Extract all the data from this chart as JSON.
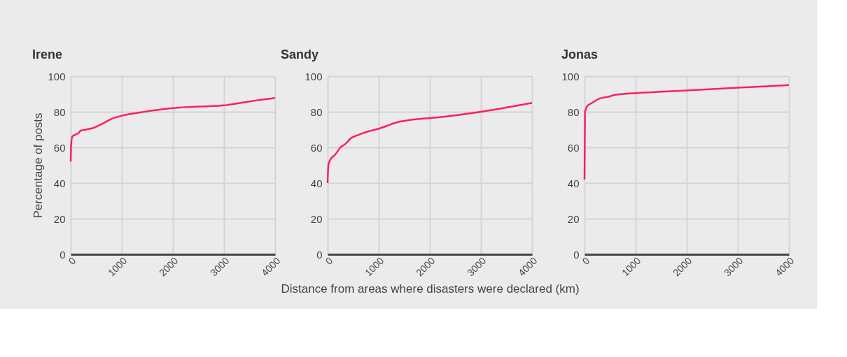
{
  "chart_data": [
    {
      "type": "line",
      "title": "Irene",
      "ylabel": "Percentage of posts",
      "xlim": [
        0,
        4000
      ],
      "ylim": [
        0,
        100
      ],
      "xticks": [
        0,
        1000,
        2000,
        3000,
        4000
      ],
      "yticks": [
        0,
        20,
        40,
        60,
        80,
        100
      ],
      "grid": true,
      "series": [
        {
          "color": "#ff1f5a",
          "x": [
            0,
            10,
            30,
            80,
            150,
            200,
            300,
            450,
            600,
            800,
            1000,
            1400,
            1800,
            2200,
            2600,
            3000,
            3100,
            3500,
            4000
          ],
          "values": [
            52,
            62,
            66,
            67,
            68,
            69.5,
            70,
            71,
            73,
            76,
            77.8,
            79.8,
            81.5,
            82.5,
            83,
            83.6,
            84,
            85.8,
            87.7
          ]
        }
      ]
    },
    {
      "type": "line",
      "title": "Sandy",
      "xlabel": "Distance from areas where disasters were declared (km)",
      "xlim": [
        0,
        4000
      ],
      "ylim": [
        0,
        100
      ],
      "xticks": [
        0,
        1000,
        2000,
        3000,
        4000
      ],
      "yticks": [
        0,
        20,
        40,
        60,
        80,
        100
      ],
      "grid": true,
      "series": [
        {
          "color": "#ff1f5a",
          "x": [
            0,
            15,
            50,
            150,
            250,
            350,
            450,
            600,
            800,
            1000,
            1350,
            1800,
            2200,
            3000,
            4000
          ],
          "values": [
            40,
            50,
            53,
            56,
            60,
            62,
            65,
            67,
            69,
            70.5,
            74,
            76,
            77,
            80,
            85
          ]
        }
      ]
    },
    {
      "type": "line",
      "title": "Jonas",
      "xlim": [
        0,
        4000
      ],
      "ylim": [
        0,
        100
      ],
      "xticks": [
        0,
        1000,
        2000,
        3000,
        4000
      ],
      "yticks": [
        0,
        20,
        40,
        60,
        80,
        100
      ],
      "grid": true,
      "series": [
        {
          "color": "#ff1f5a",
          "x": [
            0,
            10,
            50,
            150,
            300,
            450,
            600,
            1000,
            1500,
            2000,
            3000,
            4000
          ],
          "values": [
            42,
            80,
            83,
            85,
            87.5,
            88.3,
            89.5,
            90.5,
            91.3,
            92,
            93.5,
            95
          ]
        }
      ]
    }
  ]
}
